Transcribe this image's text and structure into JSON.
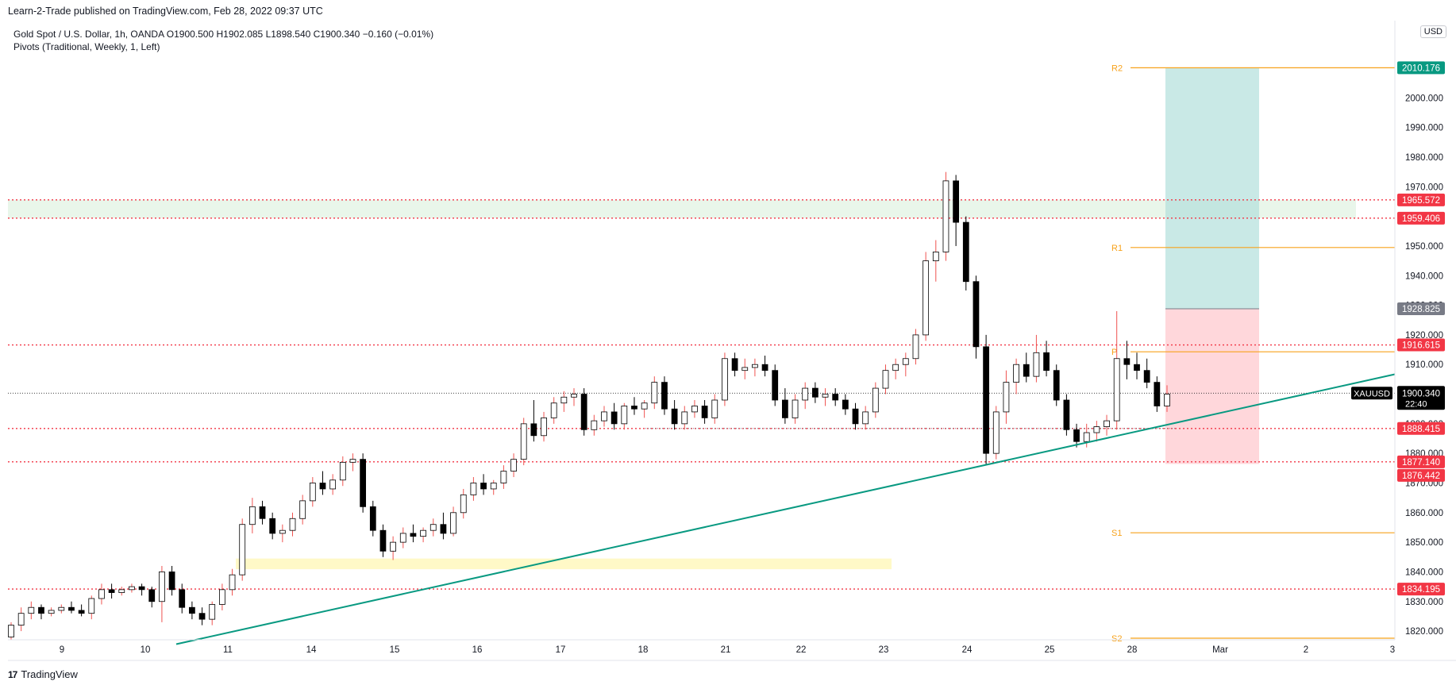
{
  "header": {
    "published": "Learn-2-Trade published on TradingView.com, Feb 28, 2022 09:37 UTC"
  },
  "legend": {
    "symbol": "Gold Spot / U.S. Dollar, 1h, OANDA",
    "open": "O1900.500",
    "high": "H1902.085",
    "low": "L1898.540",
    "close": "C1900.340",
    "change": "−0.160 (−0.01%)",
    "indicator": "Pivots (Traditional, Weekly, 1, Left)"
  },
  "currency": "USD",
  "footer": {
    "brand": "TradingView"
  },
  "colors": {
    "up": "#ffffff",
    "down": "#000000",
    "wick_up": "#ef5350",
    "wick_down": "#000000",
    "resistance_red": "#f23645",
    "pivot_orange": "#f7a21b",
    "trendline": "#089981",
    "profit_zone": "#b2dfdb",
    "loss_zone": "#ffcdd2",
    "supply_zone": "#e8f5e9",
    "demand_zone": "#fff9c4",
    "current_price": "#000000"
  },
  "chart_data": {
    "type": "candlestick",
    "symbol": "XAUUSD",
    "interval": "1h",
    "ylim": [
      1816,
      2021
    ],
    "yticks": [
      1820,
      1830,
      1840,
      1850,
      1860,
      1870,
      1880,
      1890,
      1900,
      1910,
      1920,
      1930,
      1940,
      1950,
      1960,
      1970,
      1980,
      1990,
      2000
    ],
    "x_labels": [
      "9",
      "10",
      "11",
      "14",
      "15",
      "16",
      "17",
      "18",
      "21",
      "22",
      "23",
      "24",
      "25",
      "28",
      "Mar",
      "2",
      "3"
    ],
    "current_price": {
      "label": "XAUUSD",
      "value": "1900.340",
      "countdown": "22:40"
    },
    "horizontal_levels": [
      {
        "value": 1965.572,
        "label": "1965.572"
      },
      {
        "value": 1959.406,
        "label": "1959.406"
      },
      {
        "value": 1916.615,
        "label": "1916.615"
      },
      {
        "value": 1888.415,
        "label": "1888.415"
      },
      {
        "value": 1877.14,
        "label": "1877.140"
      },
      {
        "value": 1834.195,
        "label": "1834.195"
      }
    ],
    "pivots": [
      {
        "name": "R2",
        "value": 2010.176,
        "label": "2010.176"
      },
      {
        "name": "R1",
        "value": 1949.5
      },
      {
        "name": "P",
        "value": 1914.3
      },
      {
        "name": "S1",
        "value": 1853.2
      },
      {
        "name": "S2",
        "value": 1817.6
      }
    ],
    "position": {
      "type": "long",
      "entry": 1928.825,
      "entry_label": "1928.825",
      "target": 2010.176,
      "stop": 1876.442,
      "stop_label": "1876.442"
    },
    "zones": [
      {
        "name": "supply",
        "from": 1959.406,
        "to": 1965.572
      },
      {
        "name": "demand",
        "from": 1840.9,
        "to": 1844.5
      }
    ],
    "trendline": {
      "from": {
        "x": 10.38,
        "y": 1815.6
      },
      "to": {
        "x": 3.0,
        "y": 1906.7
      }
    },
    "ohlc": [
      [
        1818,
        1823,
        1817,
        1822
      ],
      [
        1822,
        1828,
        1820,
        1826
      ],
      [
        1826,
        1830,
        1824,
        1828
      ],
      [
        1828,
        1829,
        1824,
        1826
      ],
      [
        1826,
        1828,
        1825,
        1827
      ],
      [
        1827,
        1829,
        1826,
        1828
      ],
      [
        1828,
        1830,
        1826,
        1827
      ],
      [
        1827,
        1829,
        1825,
        1826
      ],
      [
        1826,
        1832,
        1824,
        1831
      ],
      [
        1831,
        1836,
        1829,
        1834
      ],
      [
        1834,
        1836,
        1831,
        1833
      ],
      [
        1833,
        1835,
        1832,
        1834
      ],
      [
        1834,
        1836,
        1833,
        1835
      ],
      [
        1835,
        1836,
        1832,
        1834
      ],
      [
        1834,
        1835,
        1828,
        1830
      ],
      [
        1830,
        1842,
        1823,
        1840
      ],
      [
        1840,
        1842,
        1832,
        1834
      ],
      [
        1834,
        1836,
        1826,
        1828
      ],
      [
        1828,
        1830,
        1824,
        1826
      ],
      [
        1826,
        1828,
        1822,
        1824
      ],
      [
        1824,
        1830,
        1822,
        1829
      ],
      [
        1829,
        1836,
        1827,
        1834
      ],
      [
        1834,
        1841,
        1832,
        1839
      ],
      [
        1839,
        1858,
        1837,
        1856
      ],
      [
        1856,
        1865,
        1853,
        1862
      ],
      [
        1862,
        1864,
        1856,
        1858
      ],
      [
        1858,
        1860,
        1851,
        1853
      ],
      [
        1853,
        1856,
        1850,
        1854
      ],
      [
        1854,
        1860,
        1852,
        1858
      ],
      [
        1858,
        1866,
        1856,
        1864
      ],
      [
        1864,
        1872,
        1862,
        1870
      ],
      [
        1870,
        1874,
        1866,
        1868
      ],
      [
        1868,
        1873,
        1866,
        1871
      ],
      [
        1871,
        1879,
        1869,
        1877
      ],
      [
        1877,
        1880,
        1874,
        1878
      ],
      [
        1878,
        1880,
        1860,
        1862
      ],
      [
        1862,
        1864,
        1852,
        1854
      ],
      [
        1854,
        1856,
        1845,
        1847
      ],
      [
        1847,
        1852,
        1844,
        1850
      ],
      [
        1850,
        1855,
        1848,
        1853
      ],
      [
        1853,
        1856,
        1850,
        1852
      ],
      [
        1852,
        1855,
        1850,
        1854
      ],
      [
        1854,
        1858,
        1852,
        1856
      ],
      [
        1856,
        1860,
        1851,
        1853
      ],
      [
        1853,
        1862,
        1852,
        1860
      ],
      [
        1860,
        1868,
        1858,
        1866
      ],
      [
        1866,
        1872,
        1864,
        1870
      ],
      [
        1870,
        1873,
        1866,
        1868
      ],
      [
        1868,
        1871,
        1866,
        1870
      ],
      [
        1870,
        1876,
        1868,
        1874
      ],
      [
        1874,
        1880,
        1872,
        1878
      ],
      [
        1878,
        1892,
        1876,
        1890
      ],
      [
        1890,
        1898,
        1884,
        1886
      ],
      [
        1886,
        1894,
        1884,
        1892
      ],
      [
        1892,
        1899,
        1890,
        1897
      ],
      [
        1897,
        1901,
        1894,
        1899
      ],
      [
        1899,
        1902,
        1896,
        1900
      ],
      [
        1900,
        1902,
        1886,
        1888
      ],
      [
        1888,
        1893,
        1886,
        1891
      ],
      [
        1891,
        1896,
        1889,
        1894
      ],
      [
        1894,
        1897,
        1888,
        1890
      ],
      [
        1890,
        1897,
        1888,
        1896
      ],
      [
        1896,
        1899,
        1893,
        1895
      ],
      [
        1895,
        1898,
        1892,
        1897
      ],
      [
        1897,
        1906,
        1895,
        1904
      ],
      [
        1904,
        1906,
        1893,
        1895
      ],
      [
        1895,
        1898,
        1888,
        1890
      ],
      [
        1890,
        1896,
        1888,
        1894
      ],
      [
        1894,
        1898,
        1892,
        1896
      ],
      [
        1896,
        1898,
        1890,
        1892
      ],
      [
        1892,
        1900,
        1890,
        1898
      ],
      [
        1898,
        1914,
        1896,
        1912
      ],
      [
        1912,
        1914,
        1906,
        1908
      ],
      [
        1908,
        1912,
        1905,
        1909
      ],
      [
        1909,
        1912,
        1906,
        1910
      ],
      [
        1910,
        1913,
        1906,
        1908
      ],
      [
        1908,
        1910,
        1896,
        1898
      ],
      [
        1898,
        1902,
        1890,
        1892
      ],
      [
        1892,
        1900,
        1890,
        1898
      ],
      [
        1898,
        1904,
        1895,
        1902
      ],
      [
        1902,
        1904,
        1897,
        1899
      ],
      [
        1899,
        1902,
        1896,
        1900
      ],
      [
        1900,
        1902,
        1896,
        1898
      ],
      [
        1898,
        1900,
        1893,
        1895
      ],
      [
        1895,
        1897,
        1888,
        1890
      ],
      [
        1890,
        1896,
        1888,
        1894
      ],
      [
        1894,
        1904,
        1892,
        1902
      ],
      [
        1902,
        1910,
        1900,
        1908
      ],
      [
        1908,
        1912,
        1905,
        1910
      ],
      [
        1910,
        1914,
        1906,
        1912
      ],
      [
        1912,
        1922,
        1910,
        1920
      ],
      [
        1920,
        1948,
        1918,
        1945
      ],
      [
        1945,
        1952,
        1938,
        1948
      ],
      [
        1948,
        1975,
        1945,
        1972
      ],
      [
        1972,
        1974,
        1950,
        1958
      ],
      [
        1958,
        1960,
        1935,
        1938
      ],
      [
        1938,
        1940,
        1912,
        1916
      ],
      [
        1916,
        1920,
        1876,
        1880
      ],
      [
        1880,
        1896,
        1878,
        1894
      ],
      [
        1894,
        1908,
        1890,
        1904
      ],
      [
        1904,
        1912,
        1900,
        1910
      ],
      [
        1910,
        1914,
        1904,
        1906
      ],
      [
        1906,
        1920,
        1904,
        1914
      ],
      [
        1914,
        1918,
        1906,
        1908
      ],
      [
        1908,
        1910,
        1896,
        1898
      ],
      [
        1898,
        1900,
        1886,
        1888
      ],
      [
        1888,
        1890,
        1882,
        1884
      ],
      [
        1884,
        1890,
        1882,
        1887
      ],
      [
        1887,
        1891,
        1884,
        1889
      ],
      [
        1889,
        1893,
        1886,
        1891
      ],
      [
        1891,
        1928,
        1888,
        1912
      ],
      [
        1912,
        1918,
        1905,
        1910
      ],
      [
        1910,
        1914,
        1905,
        1908
      ],
      [
        1908,
        1912,
        1902,
        1904
      ],
      [
        1904,
        1906,
        1894,
        1896
      ],
      [
        1896,
        1903,
        1894,
        1900
      ]
    ]
  }
}
